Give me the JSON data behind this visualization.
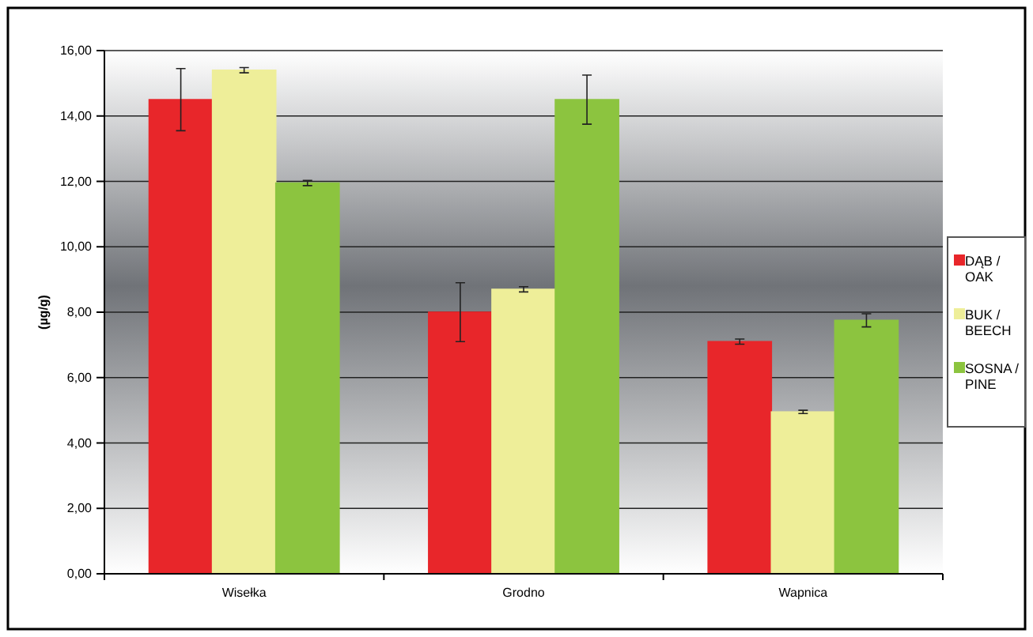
{
  "chart_data": {
    "type": "bar",
    "ylabel": "(µg/g)",
    "categories": [
      "Wisełka",
      "Grodno",
      "Wapnica"
    ],
    "series": [
      {
        "name": "DĄB / OAK",
        "color": "#e8262a",
        "values": [
          14.5,
          8.0,
          7.1
        ],
        "errors": [
          0.95,
          0.9,
          0.08
        ]
      },
      {
        "name": "BUK / BEECH",
        "color": "#eeee99",
        "values": [
          15.4,
          8.7,
          4.95
        ],
        "errors": [
          0.08,
          0.08,
          0.05
        ]
      },
      {
        "name": "SOSNA / PINE",
        "color": "#8cc43f",
        "values": [
          11.95,
          14.5,
          7.75
        ],
        "errors": [
          0.08,
          0.75,
          0.2
        ]
      }
    ],
    "ylim": [
      0,
      16
    ],
    "yticks": [
      {
        "value": 0,
        "label": "0,00"
      },
      {
        "value": 2,
        "label": "2,00"
      },
      {
        "value": 4,
        "label": "4,00"
      },
      {
        "value": 6,
        "label": "6,00"
      },
      {
        "value": 8,
        "label": "8,00"
      },
      {
        "value": 10,
        "label": "10,00"
      },
      {
        "value": 12,
        "label": "12,00"
      },
      {
        "value": 14,
        "label": "14,00"
      },
      {
        "value": 16,
        "label": "16,00"
      }
    ],
    "grid": "y",
    "legend": "right"
  }
}
